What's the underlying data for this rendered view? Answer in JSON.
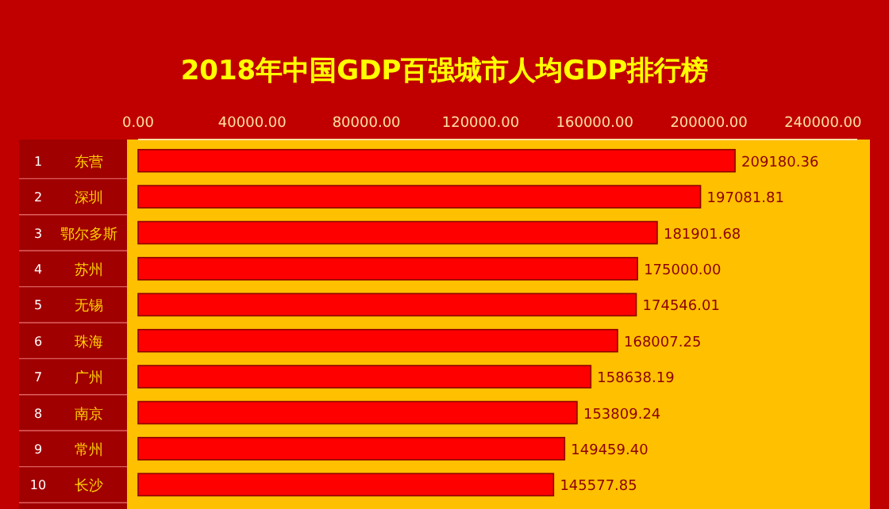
{
  "chart_data": {
    "type": "bar",
    "orientation": "horizontal",
    "title": "2018年中国GDP百强城市人均GDP排行榜",
    "categories": [
      "东营",
      "深圳",
      "鄂尔多斯",
      "苏州",
      "无锡",
      "珠海",
      "广州",
      "南京",
      "常州",
      "长沙"
    ],
    "annotations": [
      "1",
      "2",
      "3",
      "4",
      "5",
      "6",
      "7",
      "8",
      "9",
      "10"
    ],
    "values": [
      209180.36,
      197081.81,
      181901.68,
      175000.0,
      174546.01,
      168007.25,
      158638.19,
      153809.24,
      149459.4,
      145577.85
    ],
    "color": "#ff0000",
    "xlim": [
      0,
      252000
    ],
    "xticks": [
      {
        "value": 0,
        "label": "0.00"
      },
      {
        "value": 40000,
        "label": "40000.00"
      },
      {
        "value": 80000,
        "label": "80000.00"
      },
      {
        "value": 120000,
        "label": "120000.00"
      },
      {
        "value": 160000,
        "label": "160000.00"
      },
      {
        "value": 200000,
        "label": "200000.00"
      },
      {
        "value": 240000,
        "label": "240000.00"
      }
    ],
    "value_labels": [
      "209180.36",
      "197081.81",
      "181901.68",
      "175000.00",
      "174546.01",
      "168007.25",
      "158638.19",
      "153809.24",
      "149459.40",
      "145577.85"
    ],
    "grid": false
  }
}
